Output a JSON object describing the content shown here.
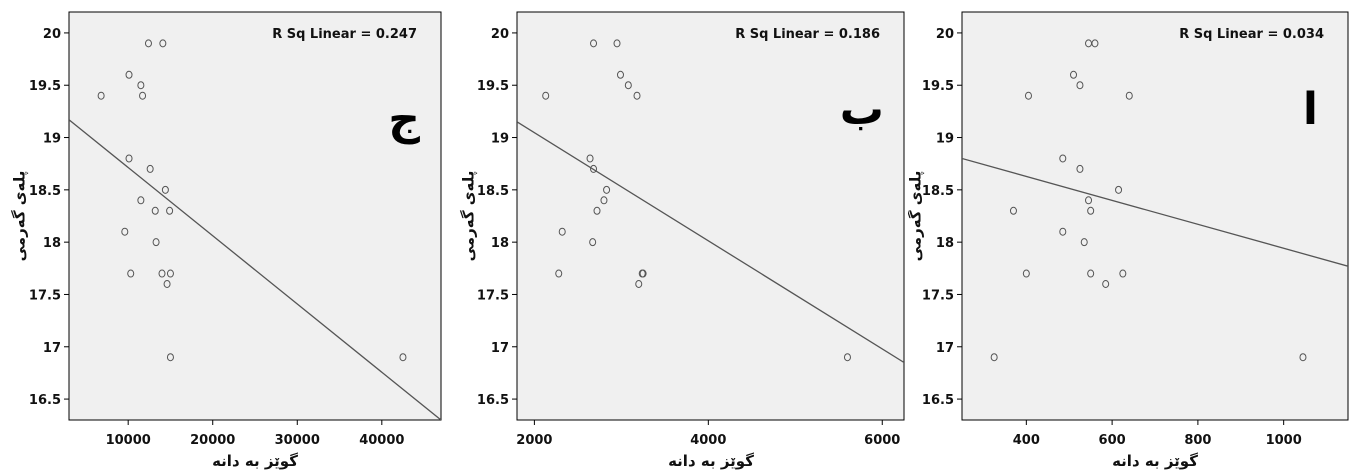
{
  "chart_data": [
    {
      "type": "scatter",
      "panel_label": "ج",
      "annotation": "R Sq Linear = 0.247",
      "xlabel": "گوێز بە دانە",
      "ylabel": "پلەی گەرمی",
      "xlim": [
        3000,
        47000
      ],
      "ylim": [
        16.3,
        20.2
      ],
      "xticks": [
        10000,
        20000,
        30000,
        40000
      ],
      "xtick_labels": [
        "10000",
        "20000",
        "30000",
        "40000"
      ],
      "yticks": [
        16.5,
        17,
        17.5,
        18,
        18.5,
        19,
        19.5,
        20
      ],
      "ytick_labels": [
        "16.5",
        "17",
        "17.5",
        "18",
        "18.5",
        "19",
        "19.5",
        "20"
      ],
      "points": [
        {
          "x": 6800,
          "y": 19.4
        },
        {
          "x": 10100,
          "y": 19.6
        },
        {
          "x": 11500,
          "y": 19.5
        },
        {
          "x": 11700,
          "y": 19.4
        },
        {
          "x": 12400,
          "y": 19.9
        },
        {
          "x": 14100,
          "y": 19.9
        },
        {
          "x": 10100,
          "y": 18.8
        },
        {
          "x": 12600,
          "y": 18.7
        },
        {
          "x": 14400,
          "y": 18.5
        },
        {
          "x": 11500,
          "y": 18.4
        },
        {
          "x": 13200,
          "y": 18.3
        },
        {
          "x": 14900,
          "y": 18.3
        },
        {
          "x": 9600,
          "y": 18.1
        },
        {
          "x": 13300,
          "y": 18.0
        },
        {
          "x": 10300,
          "y": 17.7
        },
        {
          "x": 14000,
          "y": 17.7
        },
        {
          "x": 15000,
          "y": 17.7
        },
        {
          "x": 14600,
          "y": 17.6
        },
        {
          "x": 15000,
          "y": 16.9
        },
        {
          "x": 42500,
          "y": 16.9
        }
      ],
      "fit_line": {
        "x": [
          3000,
          47000
        ],
        "y": [
          19.17,
          16.3
        ]
      }
    },
    {
      "type": "scatter",
      "panel_label": "ب",
      "annotation": "R Sq Linear = 0.186",
      "xlabel": "گوێز بە دانە",
      "ylabel": "پلەی گەرمی",
      "xlim": [
        1800,
        6250
      ],
      "ylim": [
        16.3,
        20.2
      ],
      "xticks": [
        2000,
        4000,
        6000
      ],
      "xtick_labels": [
        "2000",
        "4000",
        "6000"
      ],
      "yticks": [
        16.5,
        17,
        17.5,
        18,
        18.5,
        19,
        19.5,
        20
      ],
      "ytick_labels": [
        "16.5",
        "17",
        "17.5",
        "18",
        "18.5",
        "19",
        "19.5",
        "20"
      ],
      "points": [
        {
          "x": 2130,
          "y": 19.4
        },
        {
          "x": 2680,
          "y": 19.9
        },
        {
          "x": 2950,
          "y": 19.9
        },
        {
          "x": 2990,
          "y": 19.6
        },
        {
          "x": 3080,
          "y": 19.5
        },
        {
          "x": 3180,
          "y": 19.4
        },
        {
          "x": 2640,
          "y": 18.8
        },
        {
          "x": 2680,
          "y": 18.7
        },
        {
          "x": 2830,
          "y": 18.5
        },
        {
          "x": 2800,
          "y": 18.4
        },
        {
          "x": 2720,
          "y": 18.3
        },
        {
          "x": 2320,
          "y": 18.1
        },
        {
          "x": 2670,
          "y": 18.0
        },
        {
          "x": 2280,
          "y": 17.7
        },
        {
          "x": 3240,
          "y": 17.7
        },
        {
          "x": 3250,
          "y": 17.7
        },
        {
          "x": 3200,
          "y": 17.6
        },
        {
          "x": 5600,
          "y": 16.9
        }
      ],
      "fit_line": {
        "x": [
          1800,
          6250
        ],
        "y": [
          19.15,
          16.85
        ]
      }
    },
    {
      "type": "scatter",
      "panel_label": "ا",
      "annotation": "R Sq Linear = 0.034",
      "xlabel": "گوێز بە دانە",
      "ylabel": "پلەی گەرمی",
      "xlim": [
        250,
        1150
      ],
      "ylim": [
        16.3,
        20.2
      ],
      "xticks": [
        400,
        600,
        800,
        1000
      ],
      "xtick_labels": [
        "400",
        "600",
        "800",
        "1000"
      ],
      "yticks": [
        16.5,
        17,
        17.5,
        18,
        18.5,
        19,
        19.5,
        20
      ],
      "ytick_labels": [
        "16.5",
        "17",
        "17.5",
        "18",
        "18.5",
        "19",
        "19.5",
        "20"
      ],
      "points": [
        {
          "x": 545,
          "y": 19.9
        },
        {
          "x": 560,
          "y": 19.9
        },
        {
          "x": 510,
          "y": 19.6
        },
        {
          "x": 525,
          "y": 19.5
        },
        {
          "x": 405,
          "y": 19.4
        },
        {
          "x": 640,
          "y": 19.4
        },
        {
          "x": 485,
          "y": 18.8
        },
        {
          "x": 525,
          "y": 18.7
        },
        {
          "x": 615,
          "y": 18.5
        },
        {
          "x": 545,
          "y": 18.4
        },
        {
          "x": 370,
          "y": 18.3
        },
        {
          "x": 550,
          "y": 18.3
        },
        {
          "x": 485,
          "y": 18.1
        },
        {
          "x": 535,
          "y": 18.0
        },
        {
          "x": 400,
          "y": 17.7
        },
        {
          "x": 550,
          "y": 17.7
        },
        {
          "x": 625,
          "y": 17.7
        },
        {
          "x": 585,
          "y": 17.6
        },
        {
          "x": 325,
          "y": 16.9
        },
        {
          "x": 1045,
          "y": 16.9
        }
      ],
      "fit_line": {
        "x": [
          250,
          1150
        ],
        "y": [
          18.8,
          17.77
        ]
      }
    }
  ],
  "colors": {
    "plot_bg": "#f0f0f0",
    "axis": "#000000",
    "marker_stroke": "#555555",
    "fit_line": "#555555"
  }
}
